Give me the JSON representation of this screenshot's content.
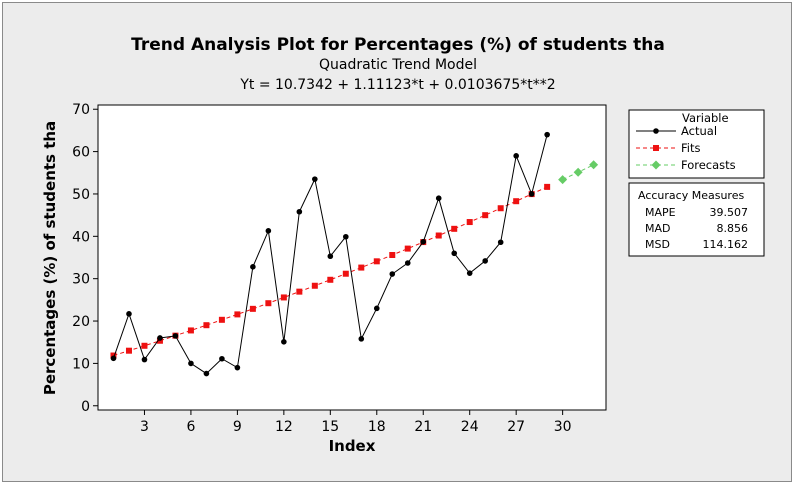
{
  "chart_data": {
    "type": "line",
    "title": "Trend Analysis Plot for Percentages (%) of students tha",
    "subtitle": "Quadratic Trend Model",
    "equation": "Yt = 10.7342 + 1.11123*t + 0.0103675*t**2",
    "xlabel": "Index",
    "ylabel": "Percentages (%) of students tha",
    "xlim": [
      0,
      32.8
    ],
    "ylim": [
      -1,
      71
    ],
    "xticks": [
      3,
      6,
      9,
      12,
      15,
      18,
      21,
      24,
      27,
      30
    ],
    "yticks": [
      0,
      10,
      20,
      30,
      40,
      50,
      60,
      70
    ],
    "legend_placement": "right",
    "legend_title": "Variable",
    "series": [
      {
        "name": "Actual",
        "color": "#000000",
        "marker": "circle",
        "x": [
          1,
          2,
          3,
          4,
          5,
          6,
          7,
          8,
          9,
          10,
          11,
          12,
          13,
          14,
          15,
          16,
          17,
          18,
          19,
          20,
          21,
          22,
          23,
          24,
          25,
          26,
          27,
          28,
          29
        ],
        "y": [
          11.2,
          21.7,
          10.9,
          16.0,
          16.5,
          10.0,
          7.6,
          11.1,
          9.0,
          32.8,
          41.3,
          15.1,
          45.8,
          53.5,
          35.3,
          39.9,
          15.8,
          23.0,
          31.1,
          33.7,
          38.7,
          49.0,
          36.0,
          31.3,
          34.2,
          38.6,
          59.0,
          50.0,
          64.0
        ]
      },
      {
        "name": "Fits",
        "color": "#ee1111",
        "marker": "square",
        "x": [
          1,
          2,
          3,
          4,
          5,
          6,
          7,
          8,
          9,
          10,
          11,
          12,
          13,
          14,
          15,
          16,
          17,
          18,
          19,
          20,
          21,
          22,
          23,
          24,
          25,
          26,
          27,
          28,
          29
        ],
        "y": [
          11.86,
          13.0,
          14.16,
          15.35,
          16.55,
          17.78,
          19.02,
          20.29,
          21.57,
          22.88,
          24.21,
          25.57,
          26.94,
          28.33,
          29.74,
          31.17,
          32.62,
          34.1,
          35.59,
          37.1,
          38.64,
          40.19,
          41.77,
          43.37,
          44.99,
          46.63,
          48.29,
          49.97,
          51.67
        ]
      },
      {
        "name": "Forecasts",
        "color": "#66cc66",
        "marker": "diamond",
        "x": [
          30,
          31,
          32
        ],
        "y": [
          53.39,
          55.13,
          56.89
        ]
      }
    ],
    "accuracy_measures": {
      "title": "Accuracy Measures",
      "rows": [
        {
          "label": "MAPE",
          "value": "39.507"
        },
        {
          "label": "MAD",
          "value": "8.856"
        },
        {
          "label": "MSD",
          "value": "114.162"
        }
      ]
    }
  }
}
